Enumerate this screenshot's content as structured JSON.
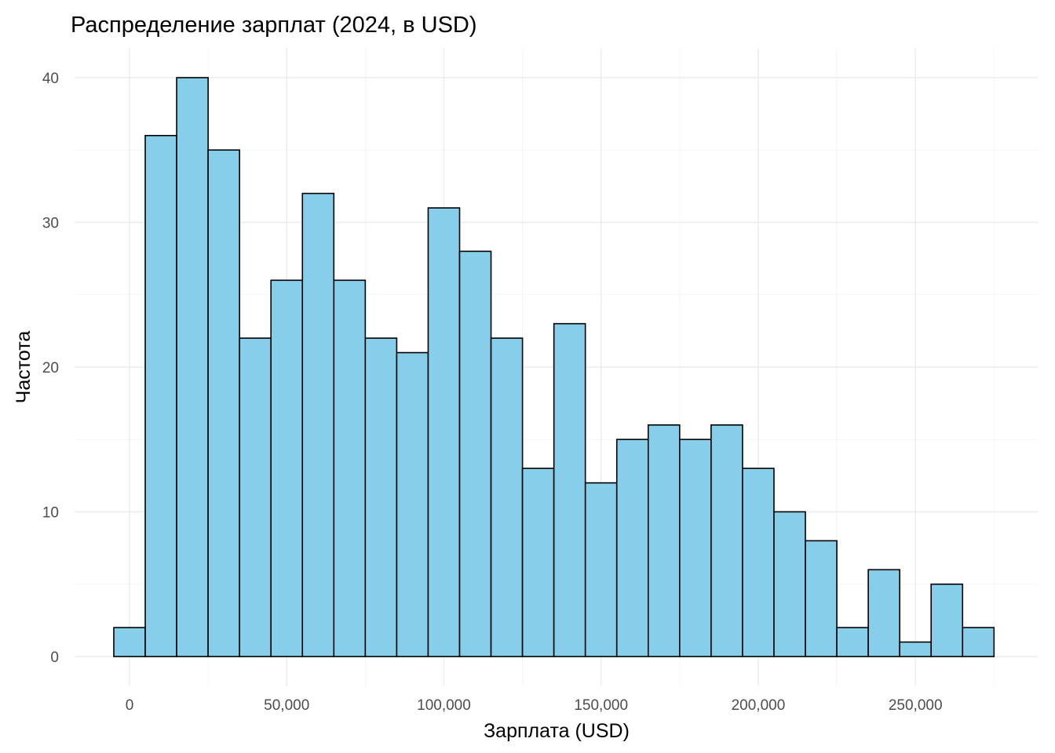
{
  "chart_data": {
    "type": "bar",
    "title": "Распределение зарплат (2024, в USD)",
    "xlabel": "Зарплата (USD)",
    "ylabel": "Частота",
    "bin_width": 10000,
    "bin_centers": [
      0,
      10000,
      20000,
      30000,
      40000,
      50000,
      60000,
      70000,
      80000,
      90000,
      100000,
      110000,
      120000,
      130000,
      140000,
      150000,
      160000,
      170000,
      180000,
      190000,
      200000,
      210000,
      220000,
      230000,
      240000,
      250000,
      260000,
      270000
    ],
    "values": [
      2,
      36,
      40,
      35,
      22,
      26,
      32,
      26,
      22,
      21,
      31,
      28,
      22,
      13,
      23,
      12,
      15,
      16,
      15,
      16,
      13,
      10,
      8,
      2,
      6,
      1,
      5,
      2
    ],
    "xlim": [
      -5000,
      275000
    ],
    "ylim": [
      0,
      40
    ],
    "x_ticks": [
      0,
      50000,
      100000,
      150000,
      200000,
      250000
    ],
    "x_tick_labels": [
      "0",
      "50,000",
      "100,000",
      "150,000",
      "200,000",
      "250,000"
    ],
    "y_ticks": [
      0,
      10,
      20,
      30,
      40
    ],
    "y_tick_labels": [
      "0",
      "10",
      "20",
      "30",
      "40"
    ],
    "grid": true,
    "legend": "none",
    "bar_fill": "#87ceeb",
    "bar_stroke": "#000000"
  }
}
